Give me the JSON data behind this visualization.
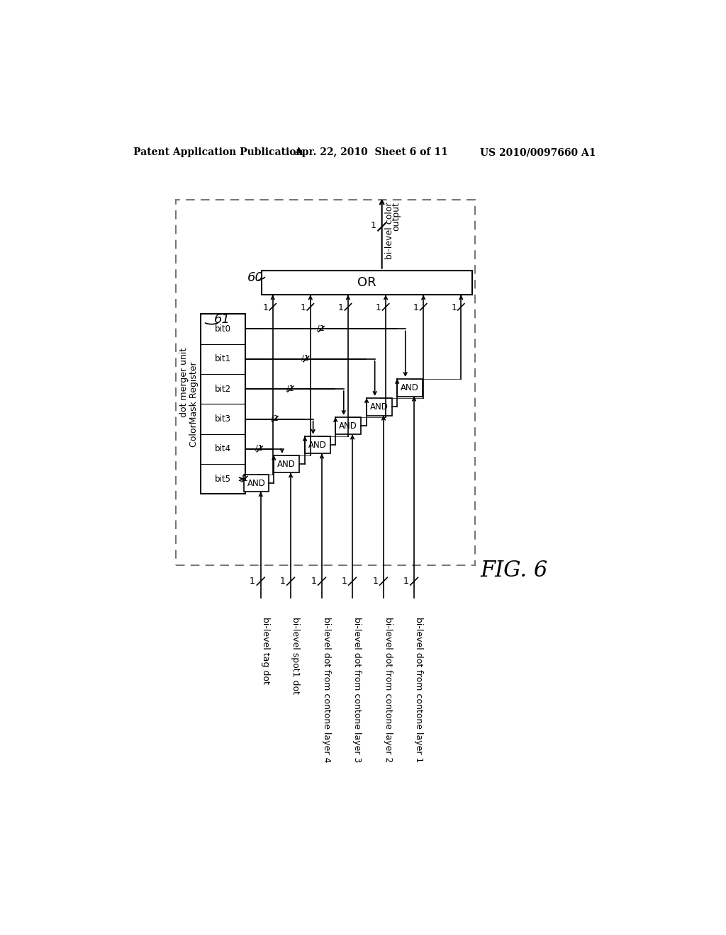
{
  "header_left": "Patent Application Publication",
  "header_center": "Apr. 22, 2010  Sheet 6 of 11",
  "header_right": "US 2010/0097660 A1",
  "fig_label": "FIG. 6",
  "label_60": "60",
  "label_61": "61",
  "title_dot_merger": "dot merger unit",
  "title_colormask": "ColorMask Register",
  "or_gate_label": "OR",
  "bit_labels": [
    "bit0",
    "bit1",
    "bit2",
    "bit3",
    "bit4",
    "bit5"
  ],
  "input_labels": [
    "bi-level tag dot",
    "bi-level spot1 dot",
    "bi-level dot from contone layer 4",
    "bi-level dot from contone layer 3",
    "bi-level dot from contone layer 2",
    "bi-level dot from contone layer 1"
  ],
  "output_label_1": "bi-level color",
  "output_label_2": "output",
  "background": "#ffffff",
  "line_color": "#000000",
  "box_color": "#ffffff",
  "dashed_color": "#777777"
}
